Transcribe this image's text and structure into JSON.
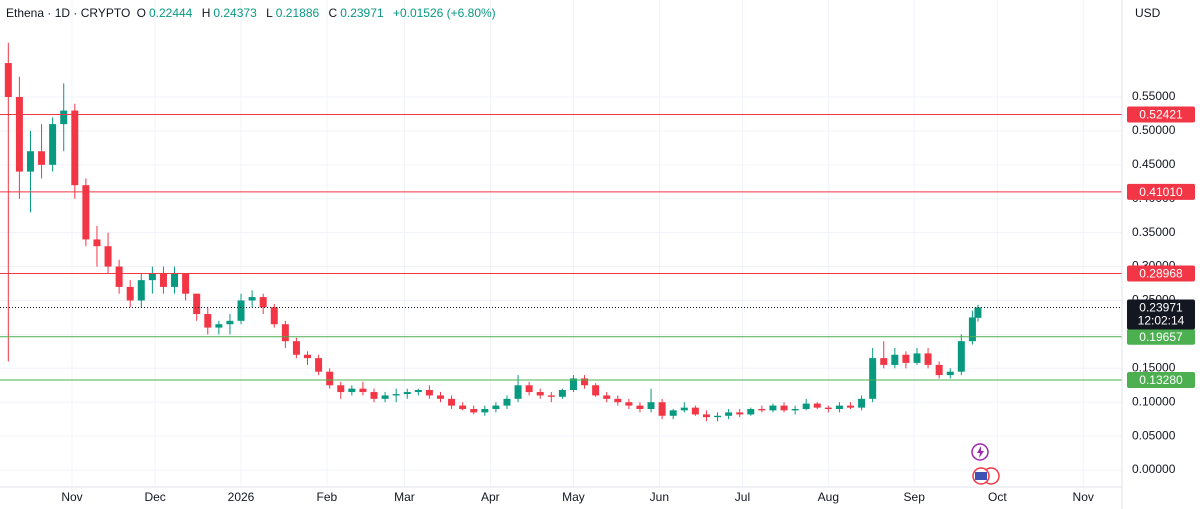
{
  "chart_data": {
    "type": "candlestick",
    "title": "Ethena · 1D · CRYPTO",
    "ohlc_letters": [
      "O",
      "H",
      "L",
      "C"
    ],
    "change_label": "+0.01526 (+6.80%)",
    "currency": "USD",
    "countdown": "12:02:14",
    "up_color": "#089981",
    "down_color": "#f23645",
    "grid": true,
    "x": [
      0,
      4,
      8,
      12,
      16,
      20,
      24,
      28,
      32,
      36,
      40,
      44,
      48,
      52,
      56,
      60,
      64,
      68,
      72,
      76,
      80,
      84,
      88,
      92,
      96,
      100,
      104,
      108,
      112,
      116,
      120,
      124,
      128,
      132,
      136,
      140,
      144,
      148,
      152,
      156,
      160,
      164,
      168,
      172,
      176,
      180,
      184,
      188,
      192,
      196,
      200,
      204,
      208,
      212,
      216,
      220,
      224,
      228,
      232,
      236,
      240,
      244,
      248,
      252,
      256,
      260,
      264,
      268,
      272,
      276,
      280,
      284,
      288,
      292,
      296,
      300,
      304,
      308,
      312,
      316,
      320,
      324,
      328,
      332,
      336,
      340,
      344,
      348,
      350
    ],
    "ohlc": [
      [
        0.6,
        0.63,
        0.16,
        0.55
      ],
      [
        0.55,
        0.58,
        0.4,
        0.44
      ],
      [
        0.44,
        0.5,
        0.38,
        0.47
      ],
      [
        0.47,
        0.51,
        0.43,
        0.45
      ],
      [
        0.45,
        0.52,
        0.44,
        0.51
      ],
      [
        0.51,
        0.57,
        0.47,
        0.53
      ],
      [
        0.53,
        0.54,
        0.4,
        0.42
      ],
      [
        0.42,
        0.43,
        0.33,
        0.34
      ],
      [
        0.34,
        0.36,
        0.3,
        0.33
      ],
      [
        0.33,
        0.35,
        0.29,
        0.3
      ],
      [
        0.3,
        0.31,
        0.26,
        0.27
      ],
      [
        0.27,
        0.28,
        0.24,
        0.25
      ],
      [
        0.25,
        0.29,
        0.24,
        0.28
      ],
      [
        0.28,
        0.3,
        0.26,
        0.29
      ],
      [
        0.29,
        0.3,
        0.26,
        0.27
      ],
      [
        0.27,
        0.3,
        0.26,
        0.29
      ],
      [
        0.29,
        0.29,
        0.25,
        0.26
      ],
      [
        0.26,
        0.26,
        0.22,
        0.23
      ],
      [
        0.23,
        0.24,
        0.2,
        0.21
      ],
      [
        0.21,
        0.22,
        0.2,
        0.215
      ],
      [
        0.215,
        0.23,
        0.2,
        0.22
      ],
      [
        0.22,
        0.26,
        0.215,
        0.25
      ],
      [
        0.25,
        0.265,
        0.24,
        0.255
      ],
      [
        0.255,
        0.26,
        0.23,
        0.24
      ],
      [
        0.24,
        0.245,
        0.21,
        0.215
      ],
      [
        0.215,
        0.22,
        0.18,
        0.19
      ],
      [
        0.19,
        0.195,
        0.165,
        0.17
      ],
      [
        0.17,
        0.175,
        0.155,
        0.165
      ],
      [
        0.165,
        0.17,
        0.14,
        0.145
      ],
      [
        0.145,
        0.15,
        0.12,
        0.125
      ],
      [
        0.125,
        0.13,
        0.105,
        0.115
      ],
      [
        0.115,
        0.125,
        0.11,
        0.12
      ],
      [
        0.12,
        0.13,
        0.11,
        0.115
      ],
      [
        0.115,
        0.12,
        0.1,
        0.105
      ],
      [
        0.105,
        0.115,
        0.1,
        0.11
      ],
      [
        0.11,
        0.12,
        0.1,
        0.112
      ],
      [
        0.112,
        0.12,
        0.105,
        0.115
      ],
      [
        0.115,
        0.12,
        0.11,
        0.118
      ],
      [
        0.118,
        0.125,
        0.105,
        0.11
      ],
      [
        0.11,
        0.115,
        0.1,
        0.105
      ],
      [
        0.105,
        0.11,
        0.09,
        0.095
      ],
      [
        0.095,
        0.1,
        0.088,
        0.09
      ],
      [
        0.09,
        0.095,
        0.082,
        0.085
      ],
      [
        0.085,
        0.095,
        0.08,
        0.09
      ],
      [
        0.09,
        0.1,
        0.085,
        0.095
      ],
      [
        0.095,
        0.11,
        0.09,
        0.105
      ],
      [
        0.105,
        0.14,
        0.1,
        0.125
      ],
      [
        0.125,
        0.13,
        0.11,
        0.115
      ],
      [
        0.115,
        0.12,
        0.105,
        0.11
      ],
      [
        0.11,
        0.115,
        0.1,
        0.108
      ],
      [
        0.108,
        0.12,
        0.105,
        0.118
      ],
      [
        0.118,
        0.14,
        0.115,
        0.135
      ],
      [
        0.135,
        0.14,
        0.12,
        0.125
      ],
      [
        0.125,
        0.128,
        0.108,
        0.11
      ],
      [
        0.11,
        0.115,
        0.1,
        0.105
      ],
      [
        0.105,
        0.11,
        0.095,
        0.1
      ],
      [
        0.1,
        0.105,
        0.09,
        0.095
      ],
      [
        0.095,
        0.1,
        0.085,
        0.09
      ],
      [
        0.09,
        0.12,
        0.085,
        0.1
      ],
      [
        0.1,
        0.105,
        0.075,
        0.08
      ],
      [
        0.08,
        0.09,
        0.075,
        0.088
      ],
      [
        0.088,
        0.1,
        0.085,
        0.092
      ],
      [
        0.092,
        0.095,
        0.08,
        0.082
      ],
      [
        0.082,
        0.088,
        0.072,
        0.078
      ],
      [
        0.078,
        0.085,
        0.072,
        0.08
      ],
      [
        0.08,
        0.09,
        0.075,
        0.085
      ],
      [
        0.085,
        0.09,
        0.078,
        0.082
      ],
      [
        0.082,
        0.092,
        0.08,
        0.09
      ],
      [
        0.09,
        0.095,
        0.085,
        0.088
      ],
      [
        0.088,
        0.098,
        0.085,
        0.095
      ],
      [
        0.095,
        0.1,
        0.085,
        0.088
      ],
      [
        0.088,
        0.095,
        0.082,
        0.09
      ],
      [
        0.09,
        0.105,
        0.088,
        0.098
      ],
      [
        0.098,
        0.1,
        0.09,
        0.092
      ],
      [
        0.092,
        0.095,
        0.085,
        0.09
      ],
      [
        0.09,
        0.1,
        0.085,
        0.095
      ],
      [
        0.095,
        0.1,
        0.09,
        0.092
      ],
      [
        0.092,
        0.11,
        0.088,
        0.105
      ],
      [
        0.105,
        0.18,
        0.1,
        0.165
      ],
      [
        0.165,
        0.19,
        0.15,
        0.155
      ],
      [
        0.155,
        0.18,
        0.15,
        0.17
      ],
      [
        0.17,
        0.175,
        0.15,
        0.158
      ],
      [
        0.158,
        0.18,
        0.155,
        0.172
      ],
      [
        0.172,
        0.18,
        0.15,
        0.155
      ],
      [
        0.155,
        0.16,
        0.135,
        0.14
      ],
      [
        0.14,
        0.15,
        0.135,
        0.145
      ],
      [
        0.145,
        0.2,
        0.14,
        0.19
      ],
      [
        0.19,
        0.235,
        0.185,
        0.225
      ],
      [
        0.22444,
        0.24373,
        0.21886,
        0.23971
      ]
    ],
    "xlim": [
      -3,
      402
    ],
    "xticks": [
      {
        "value": 23,
        "label": "Nov"
      },
      {
        "value": 53,
        "label": "Dec"
      },
      {
        "value": 84,
        "label": "2026"
      },
      {
        "value": 115,
        "label": "Feb"
      },
      {
        "value": 143,
        "label": "Mar"
      },
      {
        "value": 174,
        "label": "Apr"
      },
      {
        "value": 204,
        "label": "May"
      },
      {
        "value": 235,
        "label": "Jun"
      },
      {
        "value": 265,
        "label": "Jul"
      },
      {
        "value": 296,
        "label": "Aug"
      },
      {
        "value": 327,
        "label": "Sep"
      },
      {
        "value": 357,
        "label": "Oct"
      },
      {
        "value": 388,
        "label": "Nov"
      }
    ],
    "ylim": [
      -0.025,
      0.693
    ],
    "yticks": [
      {
        "value": 0,
        "label": "0.00000"
      },
      {
        "value": 0.05,
        "label": "0.05000"
      },
      {
        "value": 0.1,
        "label": "0.10000"
      },
      {
        "value": 0.15,
        "label": "0.15000"
      },
      {
        "value": 0.2,
        "label": "0.20000"
      },
      {
        "value": 0.25,
        "label": "0.25000"
      },
      {
        "value": 0.3,
        "label": "0.30000"
      },
      {
        "value": 0.35,
        "label": "0.35000"
      },
      {
        "value": 0.4,
        "label": "0.40000"
      },
      {
        "value": 0.45,
        "label": "0.45000"
      },
      {
        "value": 0.5,
        "label": "0.50000"
      },
      {
        "value": 0.55,
        "label": "0.55000"
      }
    ],
    "levels": [
      {
        "value": 0.52421,
        "label": "0.52421",
        "color": "#f23645"
      },
      {
        "value": 0.4101,
        "label": "0.41010",
        "color": "#f23645"
      },
      {
        "value": 0.28968,
        "label": "0.28968",
        "color": "#f23645"
      },
      {
        "value": 0.19657,
        "label": "0.19657",
        "color": "#4caf50"
      },
      {
        "value": 0.1328,
        "label": "0.13280",
        "color": "#4caf50"
      }
    ]
  }
}
